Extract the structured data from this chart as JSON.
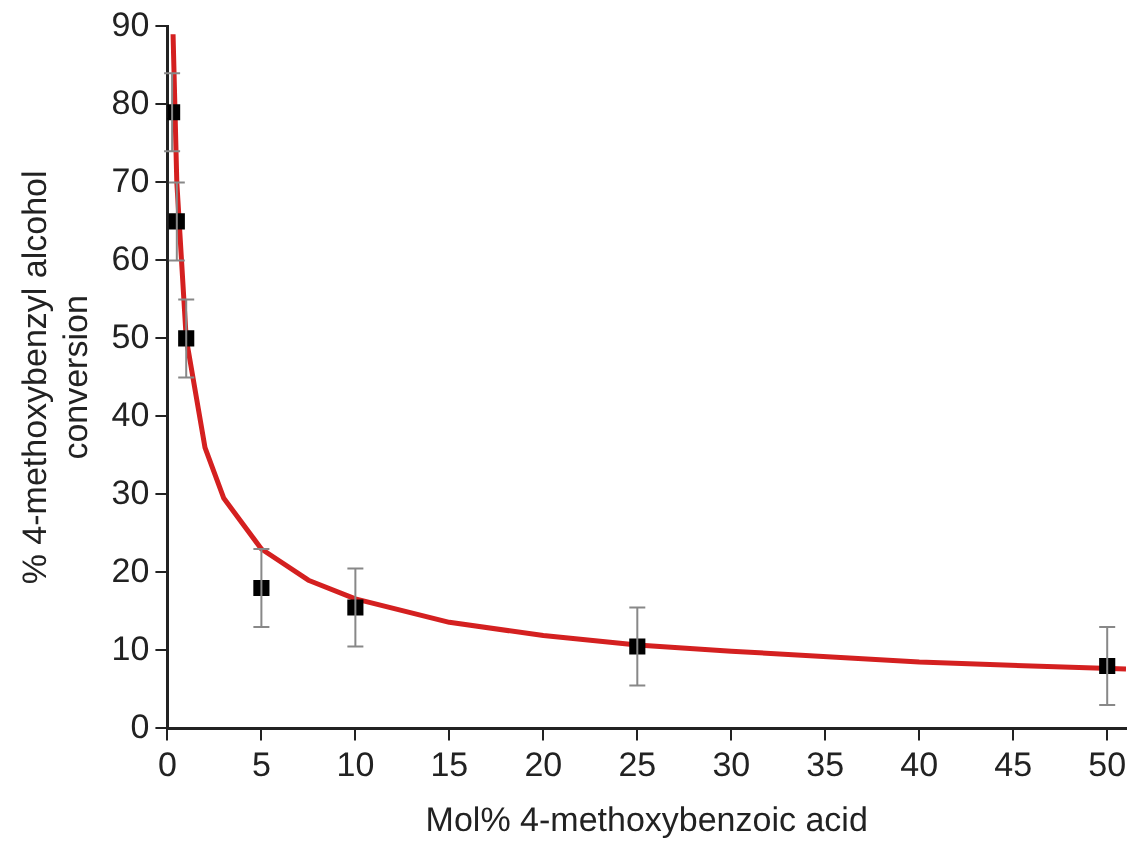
{
  "chart_data": {
    "type": "scatter",
    "xlabel": "Mol% 4-methoxybenzoic acid",
    "ylabel": "% 4-methoxybenzyl alcohol conversion",
    "xlim": [
      0,
      51
    ],
    "xticks": [
      0,
      5,
      10,
      15,
      20,
      25,
      30,
      35,
      40,
      45,
      50
    ],
    "ylim": [
      0,
      90
    ],
    "yticks": [
      0,
      10,
      20,
      30,
      40,
      50,
      60,
      70,
      80,
      90
    ],
    "grid": false,
    "legend": false,
    "series": [
      {
        "type": "line",
        "color": "#d42020",
        "marker": "none",
        "line_style": "solid",
        "x": [
          0.3,
          0.5,
          1,
          2,
          3,
          5,
          7.5,
          10,
          15,
          20,
          25,
          30,
          40,
          51
        ],
        "values": [
          89,
          70,
          50,
          36,
          29.5,
          23,
          19,
          16.6,
          13.6,
          11.9,
          10.7,
          9.9,
          8.5,
          7.6
        ]
      },
      {
        "type": "scatter",
        "color": "#000000",
        "marker": "square",
        "x": [
          0.25,
          0.5,
          1,
          5,
          10,
          25,
          50
        ],
        "values": [
          79,
          65,
          50,
          18,
          15.5,
          10.5,
          8
        ],
        "errors": [
          5,
          5,
          5,
          5,
          5,
          5,
          5
        ]
      }
    ]
  }
}
